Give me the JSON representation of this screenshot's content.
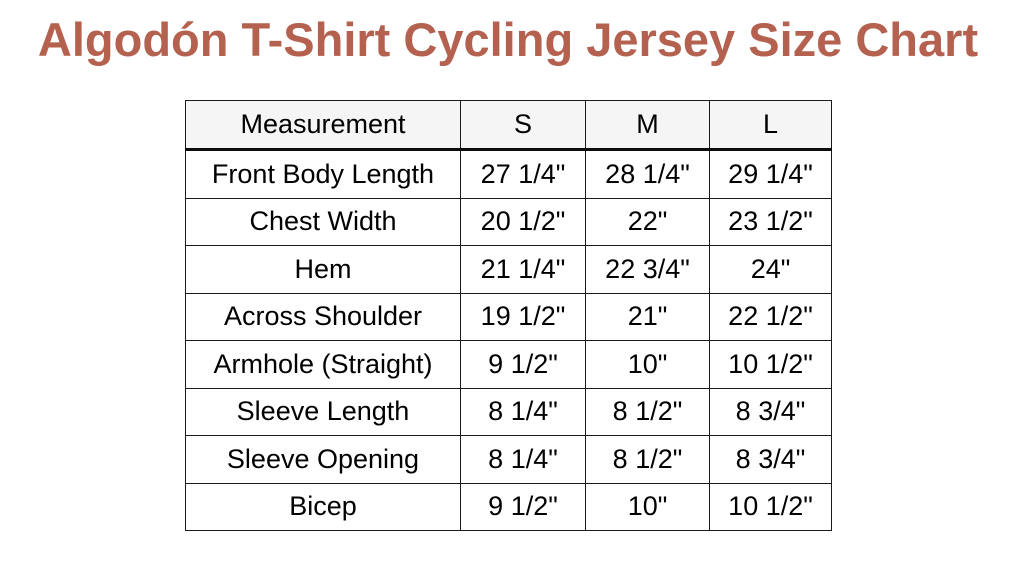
{
  "title": {
    "text": "Algodón T-Shirt Cycling Jersey Size Chart"
  },
  "colors": {
    "title": "#b4614f",
    "header_background": "#f5f5f5",
    "border": "#1a1a1a",
    "text": "#000000",
    "page_background": "#ffffff"
  },
  "chart_data": {
    "type": "table",
    "title": "Algodón T-Shirt Cycling Jersey Size Chart",
    "columns": [
      "Measurement",
      "S",
      "M",
      "L"
    ],
    "rows": [
      [
        "Front Body Length",
        "27 1/4\"",
        "28 1/4\"",
        "29 1/4\""
      ],
      [
        "Chest Width",
        "20 1/2\"",
        "22\"",
        "23 1/2\""
      ],
      [
        "Hem",
        "21 1/4\"",
        "22 3/4\"",
        "24\""
      ],
      [
        "Across Shoulder",
        "19 1/2\"",
        "21\"",
        "22 1/2\""
      ],
      [
        "Armhole (Straight)",
        "9 1/2\"",
        "10\"",
        "10 1/2\""
      ],
      [
        "Sleeve Length",
        "8 1/4\"",
        "8 1/2\"",
        "8 3/4\""
      ],
      [
        "Sleeve Opening",
        "8 1/4\"",
        "8 1/2\"",
        "8 3/4\""
      ],
      [
        "Bicep",
        "9 1/2\"",
        "10\"",
        "10 1/2\""
      ]
    ],
    "layout": {
      "units": "inches",
      "header_row_shaded": true,
      "all_cells_centered": true
    }
  }
}
